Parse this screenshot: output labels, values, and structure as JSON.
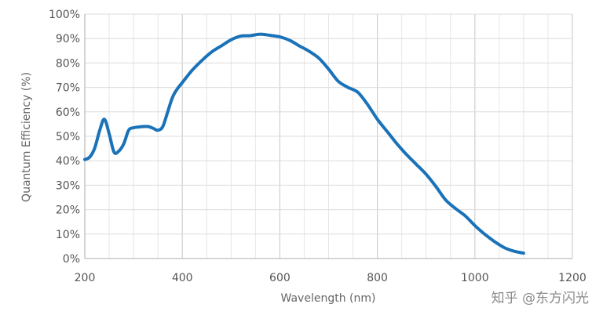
{
  "chart_data": {
    "type": "line",
    "title": "",
    "xlabel": "Wavelength (nm)",
    "ylabel": "Quantum Efficiency (%)",
    "xlim": [
      200,
      1200
    ],
    "ylim": [
      0,
      100
    ],
    "x_ticks": [
      200,
      400,
      600,
      800,
      1000,
      1200
    ],
    "y_ticks": [
      0,
      10,
      20,
      30,
      40,
      50,
      60,
      70,
      80,
      90,
      100
    ],
    "x_tick_labels": [
      "200",
      "400",
      "600",
      "800",
      "1000",
      "1200"
    ],
    "y_tick_labels": [
      "0%",
      "10%",
      "20%",
      "30%",
      "40%",
      "50%",
      "60%",
      "70%",
      "80%",
      "90%",
      "100%"
    ],
    "grid": true,
    "legend": "none",
    "series": [
      {
        "color": "#1a72b8",
        "x": [
          200,
          210,
          220,
          230,
          240,
          250,
          260,
          270,
          280,
          290,
          300,
          310,
          320,
          330,
          340,
          350,
          360,
          370,
          380,
          390,
          400,
          420,
          440,
          460,
          480,
          500,
          520,
          540,
          560,
          580,
          600,
          620,
          640,
          660,
          680,
          700,
          720,
          740,
          760,
          780,
          800,
          820,
          840,
          860,
          880,
          900,
          920,
          940,
          960,
          980,
          1000,
          1020,
          1040,
          1060,
          1080,
          1100
        ],
        "y": [
          40.5,
          41.5,
          45,
          52,
          57,
          51,
          43.5,
          44,
          47,
          52.5,
          53.5,
          53.8,
          54,
          54,
          53.3,
          52.5,
          54,
          60,
          66,
          69.5,
          72,
          77,
          81,
          84.5,
          87,
          89.5,
          91,
          91.2,
          91.8,
          91.3,
          90.7,
          89.3,
          87,
          84.8,
          82,
          77.5,
          72.5,
          70,
          68,
          63,
          57,
          52,
          47,
          42.5,
          38.5,
          34.5,
          29.5,
          24,
          20.5,
          17.5,
          13.5,
          10,
          7,
          4.5,
          3,
          2.2
        ]
      }
    ]
  },
  "watermark": "知乎 @东方闪光"
}
